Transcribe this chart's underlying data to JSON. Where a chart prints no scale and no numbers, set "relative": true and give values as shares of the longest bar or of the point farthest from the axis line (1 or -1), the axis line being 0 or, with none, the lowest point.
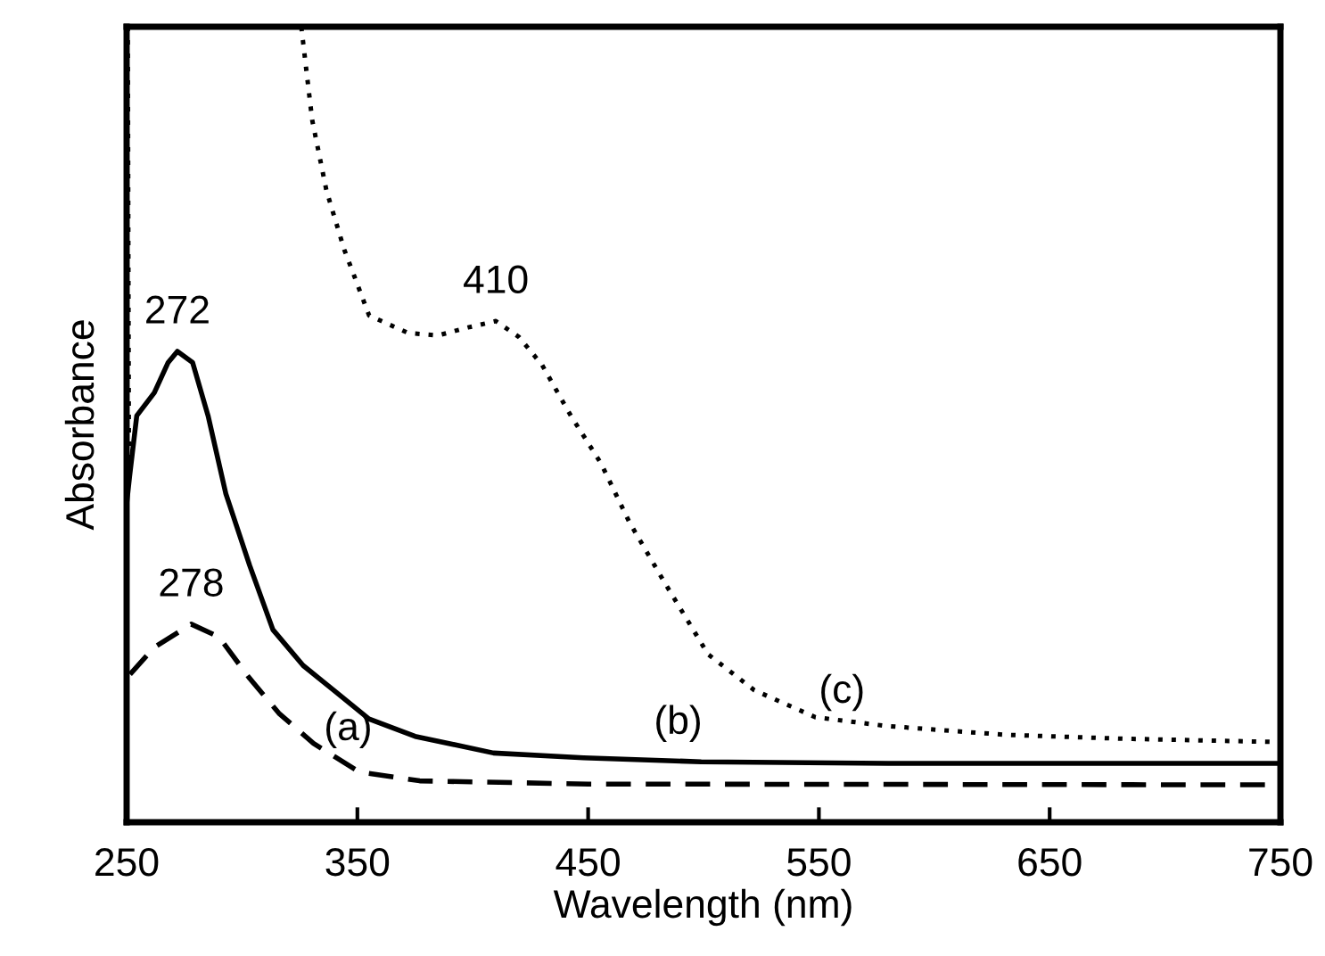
{
  "chart_data": {
    "type": "line",
    "relative": true,
    "xlabel": "Wavelength (nm)",
    "ylabel": "Absorbance",
    "xlim": [
      250,
      750
    ],
    "xticks": [
      250,
      350,
      450,
      550,
      650,
      750
    ],
    "grid": false,
    "legend": false,
    "series": [
      {
        "color": "#000000",
        "line_style": "dashed",
        "x": [
          251.5,
          262,
          278,
          290,
          303,
          316,
          331,
          351,
          377,
          450,
          750
        ],
        "values": [
          0.186,
          0.22,
          0.249,
          0.233,
          0.182,
          0.137,
          0.099,
          0.063,
          0.052,
          0.048,
          0.047
        ]
      },
      {
        "color": "#000000",
        "line_style": "solid",
        "x": [
          250,
          251.3,
          254.4,
          262,
          268,
          272,
          278.6,
          285.3,
          293,
          303.3,
          313.4,
          326.5,
          339.7,
          355,
          375,
          409,
          448,
          499,
          580,
          750
        ],
        "values": [
          0.4,
          0.435,
          0.511,
          0.54,
          0.578,
          0.592,
          0.578,
          0.511,
          0.413,
          0.323,
          0.242,
          0.197,
          0.166,
          0.13,
          0.108,
          0.087,
          0.081,
          0.076,
          0.074,
          0.074
        ]
      },
      {
        "color": "#000000",
        "line_style": "dotted",
        "x": [
          250.5,
          251,
          null,
          325.7,
          330.4,
          336.6,
          344.3,
          355.1,
          372,
          385,
          398,
          410,
          420,
          430,
          442.5,
          455.6,
          467.9,
          483.4,
          502,
          522,
          548.5,
          579.2,
          630.2,
          682,
          746
        ],
        "values": [
          1.0,
          0.435,
          null,
          1.0,
          0.883,
          0.794,
          0.72,
          0.637,
          0.615,
          0.612,
          0.622,
          0.63,
          0.61,
          0.575,
          0.511,
          0.451,
          0.377,
          0.3,
          0.211,
          0.166,
          0.132,
          0.121,
          0.11,
          0.105,
          0.101
        ]
      }
    ],
    "annotations": [
      {
        "text": "272",
        "x": 272,
        "y": 0.592
      },
      {
        "text": "278",
        "x": 278,
        "y": 0.249
      },
      {
        "text": "410",
        "x": 410,
        "y": 0.63
      },
      {
        "text": "(a)",
        "x": 346,
        "y": 0.068
      },
      {
        "text": "(b)",
        "x": 489,
        "y": 0.076
      },
      {
        "text": "(c)",
        "x": 560,
        "y": 0.115
      }
    ]
  }
}
